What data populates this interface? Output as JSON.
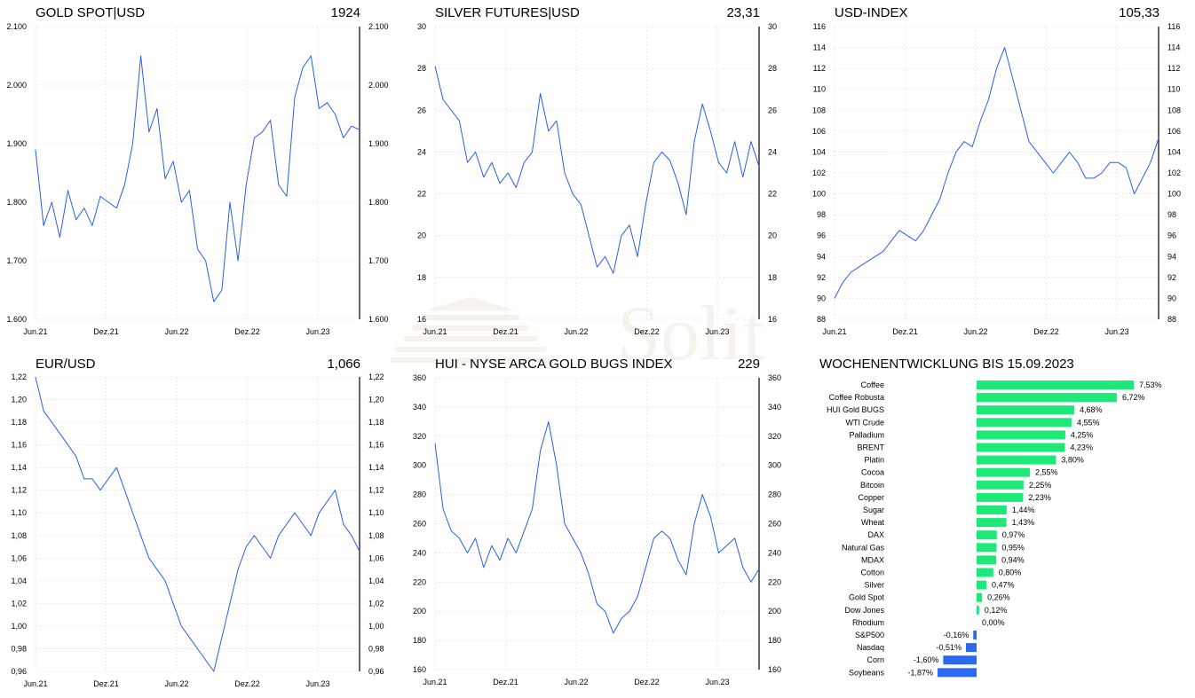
{
  "watermark": {
    "text": "Solit"
  },
  "colors": {
    "line": "#2b5ee8",
    "positive": "#1ee878",
    "negative": "#2b6af0",
    "grid": "#dcdcdc",
    "axis": "#000000"
  },
  "panels": [
    {
      "id": "gold",
      "title": "GOLD SPOT|USD",
      "value": "1924"
    },
    {
      "id": "silver",
      "title": "SILVER FUTURES|USD",
      "value": "23,31"
    },
    {
      "id": "usd",
      "title": "USD-INDEX",
      "value": "105,33"
    },
    {
      "id": "eurusd",
      "title": "EUR/USD",
      "value": "1,066"
    },
    {
      "id": "hui",
      "title": "HUI - NYSE ARCA GOLD BUGS INDEX",
      "value": "229"
    },
    {
      "id": "weekly",
      "title": "WOCHENENTWICKLUNG BIS  15.09.2023",
      "value": ""
    }
  ],
  "chart_data": [
    {
      "type": "line",
      "id": "gold",
      "title": "GOLD SPOT|USD",
      "x_ticks": [
        "Jun.21",
        "Dez.21",
        "Jun.22",
        "Dez.22",
        "Jun.23"
      ],
      "y_ticks": [
        "1.600",
        "1.700",
        "1.800",
        "1.900",
        "2.000",
        "2.100"
      ],
      "ylim": [
        1600,
        2100
      ],
      "series": [
        {
          "values": [
            1890,
            1760,
            1800,
            1740,
            1820,
            1770,
            1790,
            1760,
            1810,
            1800,
            1790,
            1830,
            1900,
            2050,
            1920,
            1960,
            1840,
            1870,
            1800,
            1820,
            1720,
            1700,
            1630,
            1650,
            1800,
            1700,
            1830,
            1910,
            1920,
            1940,
            1830,
            1810,
            1980,
            2030,
            2050,
            1960,
            1970,
            1950,
            1910,
            1930,
            1924
          ]
        }
      ]
    },
    {
      "type": "line",
      "id": "silver",
      "title": "SILVER FUTURES|USD",
      "x_ticks": [
        "Jun.21",
        "Dez.21",
        "Jun.22",
        "Dez.22",
        "Jun.23"
      ],
      "y_ticks": [
        "16",
        "18",
        "20",
        "22",
        "24",
        "26",
        "28",
        "30"
      ],
      "ylim": [
        16,
        30
      ],
      "series": [
        {
          "values": [
            28.1,
            26.5,
            26,
            25.5,
            23.5,
            24,
            22.8,
            23.5,
            22.5,
            23,
            22.3,
            23.5,
            24,
            26.8,
            25,
            25.5,
            23,
            22,
            21.5,
            20,
            18.5,
            19,
            18.2,
            20,
            20.5,
            19,
            21.5,
            23.5,
            24,
            23.6,
            22.5,
            21,
            24.5,
            26.3,
            25,
            23.5,
            23,
            24.5,
            22.8,
            24.5,
            23.31
          ]
        }
      ]
    },
    {
      "type": "line",
      "id": "usd",
      "title": "USD-INDEX",
      "x_ticks": [
        "Jun.21",
        "Dez.21",
        "Jun.22",
        "Dez.22",
        "Jun.23"
      ],
      "y_ticks": [
        "88",
        "90",
        "92",
        "94",
        "96",
        "98",
        "100",
        "102",
        "104",
        "106",
        "108",
        "110",
        "112",
        "114",
        "116"
      ],
      "ylim": [
        88,
        116
      ],
      "series": [
        {
          "values": [
            90,
            91.5,
            92.5,
            93,
            93.5,
            94,
            94.5,
            95.5,
            96.5,
            96,
            95.5,
            96.5,
            98,
            99.5,
            102,
            104,
            105,
            104.5,
            107,
            109,
            112,
            114,
            111,
            108,
            105,
            104,
            103,
            102,
            103,
            104,
            103,
            101.5,
            101.5,
            102,
            103,
            103,
            102.5,
            100,
            101.5,
            103,
            105.33
          ]
        }
      ]
    },
    {
      "type": "line",
      "id": "eurusd",
      "title": "EUR/USD",
      "x_ticks": [
        "Jun.21",
        "Dez.21",
        "Jun.22",
        "Dez.22",
        "Jun.23"
      ],
      "y_ticks": [
        "0,96",
        "0,98",
        "1,00",
        "1,02",
        "1,04",
        "1,06",
        "1,08",
        "1,10",
        "1,12",
        "1,14",
        "1,16",
        "1,18",
        "1,20",
        "1,22"
      ],
      "ylim": [
        0.96,
        1.22
      ],
      "series": [
        {
          "values": [
            1.22,
            1.19,
            1.18,
            1.17,
            1.16,
            1.15,
            1.13,
            1.13,
            1.12,
            1.13,
            1.14,
            1.12,
            1.1,
            1.08,
            1.06,
            1.05,
            1.04,
            1.02,
            1.0,
            0.99,
            0.98,
            0.97,
            0.96,
            0.99,
            1.02,
            1.05,
            1.07,
            1.08,
            1.07,
            1.06,
            1.08,
            1.09,
            1.1,
            1.09,
            1.08,
            1.1,
            1.11,
            1.12,
            1.09,
            1.08,
            1.066
          ]
        }
      ]
    },
    {
      "type": "line",
      "id": "hui",
      "title": "HUI - NYSE ARCA GOLD BUGS INDEX",
      "x_ticks": [
        "Jun.21",
        "Dez.21",
        "Jun.22",
        "Dez.22",
        "Jun.23"
      ],
      "y_ticks": [
        "160",
        "180",
        "200",
        "220",
        "240",
        "260",
        "280",
        "300",
        "320",
        "340",
        "360"
      ],
      "ylim": [
        160,
        360
      ],
      "series": [
        {
          "values": [
            315,
            270,
            255,
            250,
            240,
            250,
            230,
            245,
            235,
            250,
            240,
            255,
            270,
            310,
            330,
            300,
            260,
            250,
            240,
            225,
            205,
            200,
            185,
            195,
            200,
            210,
            230,
            250,
            255,
            250,
            235,
            225,
            260,
            280,
            265,
            240,
            245,
            250,
            230,
            220,
            229
          ]
        }
      ]
    },
    {
      "type": "bar",
      "id": "weekly",
      "title": "WOCHENENTWICKLUNG BIS  15.09.2023",
      "orientation": "horizontal",
      "categories": [
        "Coffee",
        "Coffee Robusta",
        "HUI Gold BUGS",
        "WTI Crude",
        "Palladium",
        "BRENT",
        "Platin",
        "Cocoa",
        "Bitcoin",
        "Copper",
        "Sugar",
        "Wheat",
        "DAX",
        "Natural Gas",
        "MDAX",
        "Cotton",
        "Silver",
        "Gold Spot",
        "Dow Jones",
        "Rhodium",
        "S&P500",
        "Nasdaq",
        "Corn",
        "Soybeans"
      ],
      "values": [
        7.53,
        6.72,
        4.68,
        4.55,
        4.25,
        4.23,
        3.8,
        2.55,
        2.25,
        2.23,
        1.44,
        1.43,
        0.97,
        0.95,
        0.94,
        0.8,
        0.47,
        0.26,
        0.12,
        0.0,
        -0.16,
        -0.51,
        -1.6,
        -1.87
      ],
      "value_labels": [
        "7,53%",
        "6,72%",
        "4,68%",
        "4,55%",
        "4,25%",
        "4,23%",
        "3,80%",
        "2,55%",
        "2,25%",
        "2,23%",
        "1,44%",
        "1,43%",
        "0,97%",
        "0,95%",
        "0,94%",
        "0,80%",
        "0,47%",
        "0,26%",
        "0,12%",
        "0,00%",
        "-0,16%",
        "-0,51%",
        "-1,60%",
        "-1,87%"
      ]
    }
  ]
}
